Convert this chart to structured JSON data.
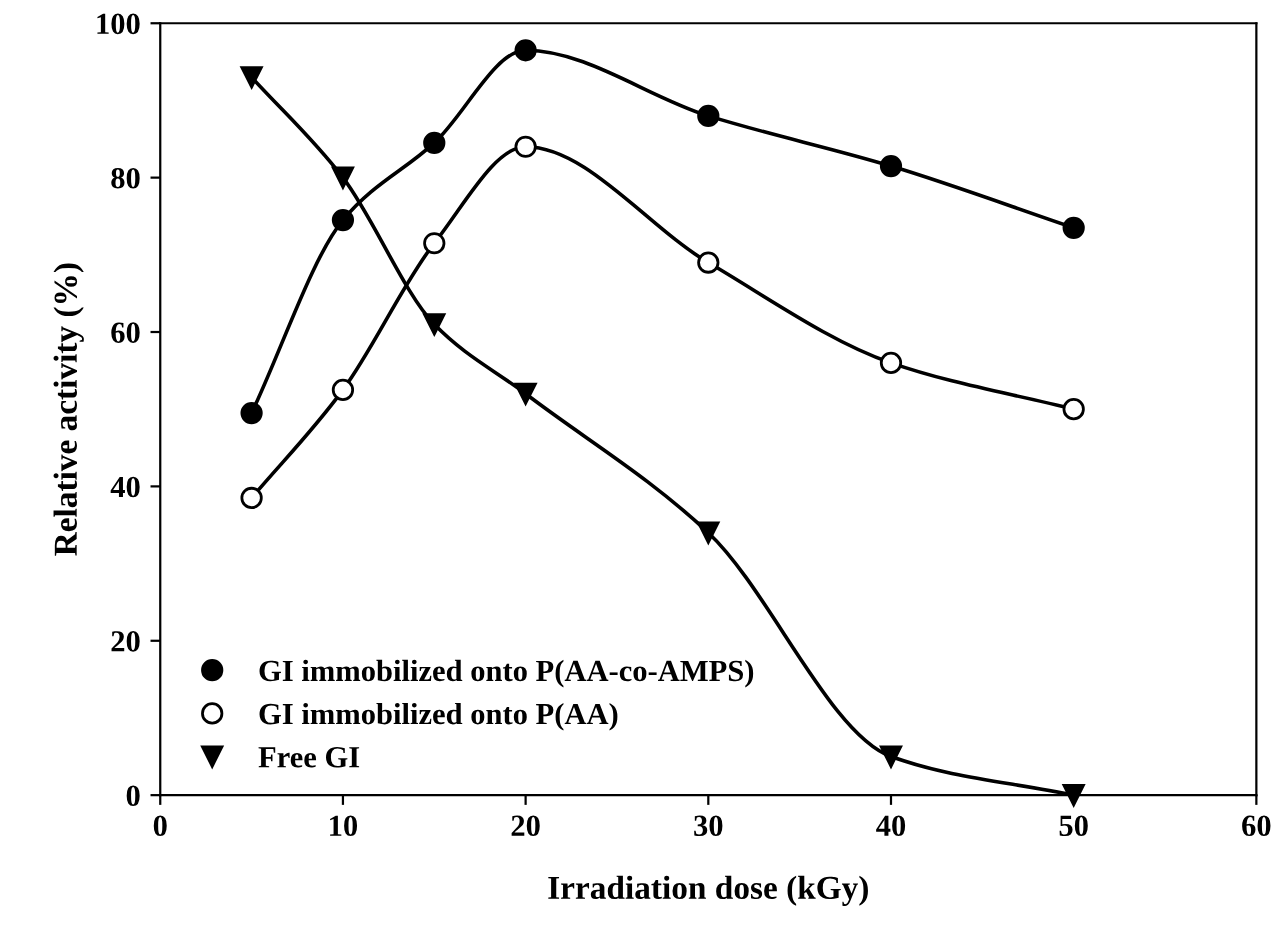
{
  "chart_data": {
    "type": "line",
    "xlabel": "Irradiation dose (kGy)",
    "ylabel": "Relative activity (%)",
    "x": [
      5,
      10,
      15,
      20,
      30,
      40,
      50
    ],
    "series": [
      {
        "name": "GI immobilized onto P(AA-co-AMPS)",
        "color": "#000000",
        "marker": "circle",
        "values": [
          49.5,
          74.5,
          84.5,
          96.5,
          88,
          81.5,
          73.5
        ]
      },
      {
        "name": "GI immobilized onto P(AA)",
        "color": "#000000",
        "marker": "circle",
        "values": [
          38.5,
          52.5,
          71.5,
          84,
          69,
          56,
          50
        ]
      },
      {
        "name": "Free GI",
        "color": "#000000",
        "marker": "triangle",
        "values": [
          93,
          80,
          61,
          52,
          34,
          5,
          0
        ]
      }
    ],
    "xlim": [
      0,
      60
    ],
    "xticks": [
      0,
      10,
      20,
      30,
      40,
      50,
      60
    ],
    "ylim": [
      0,
      100
    ],
    "yticks": [
      0,
      20,
      40,
      60,
      80,
      100
    ],
    "grid": false,
    "legend": "bottom left",
    "line_style": "solid"
  }
}
